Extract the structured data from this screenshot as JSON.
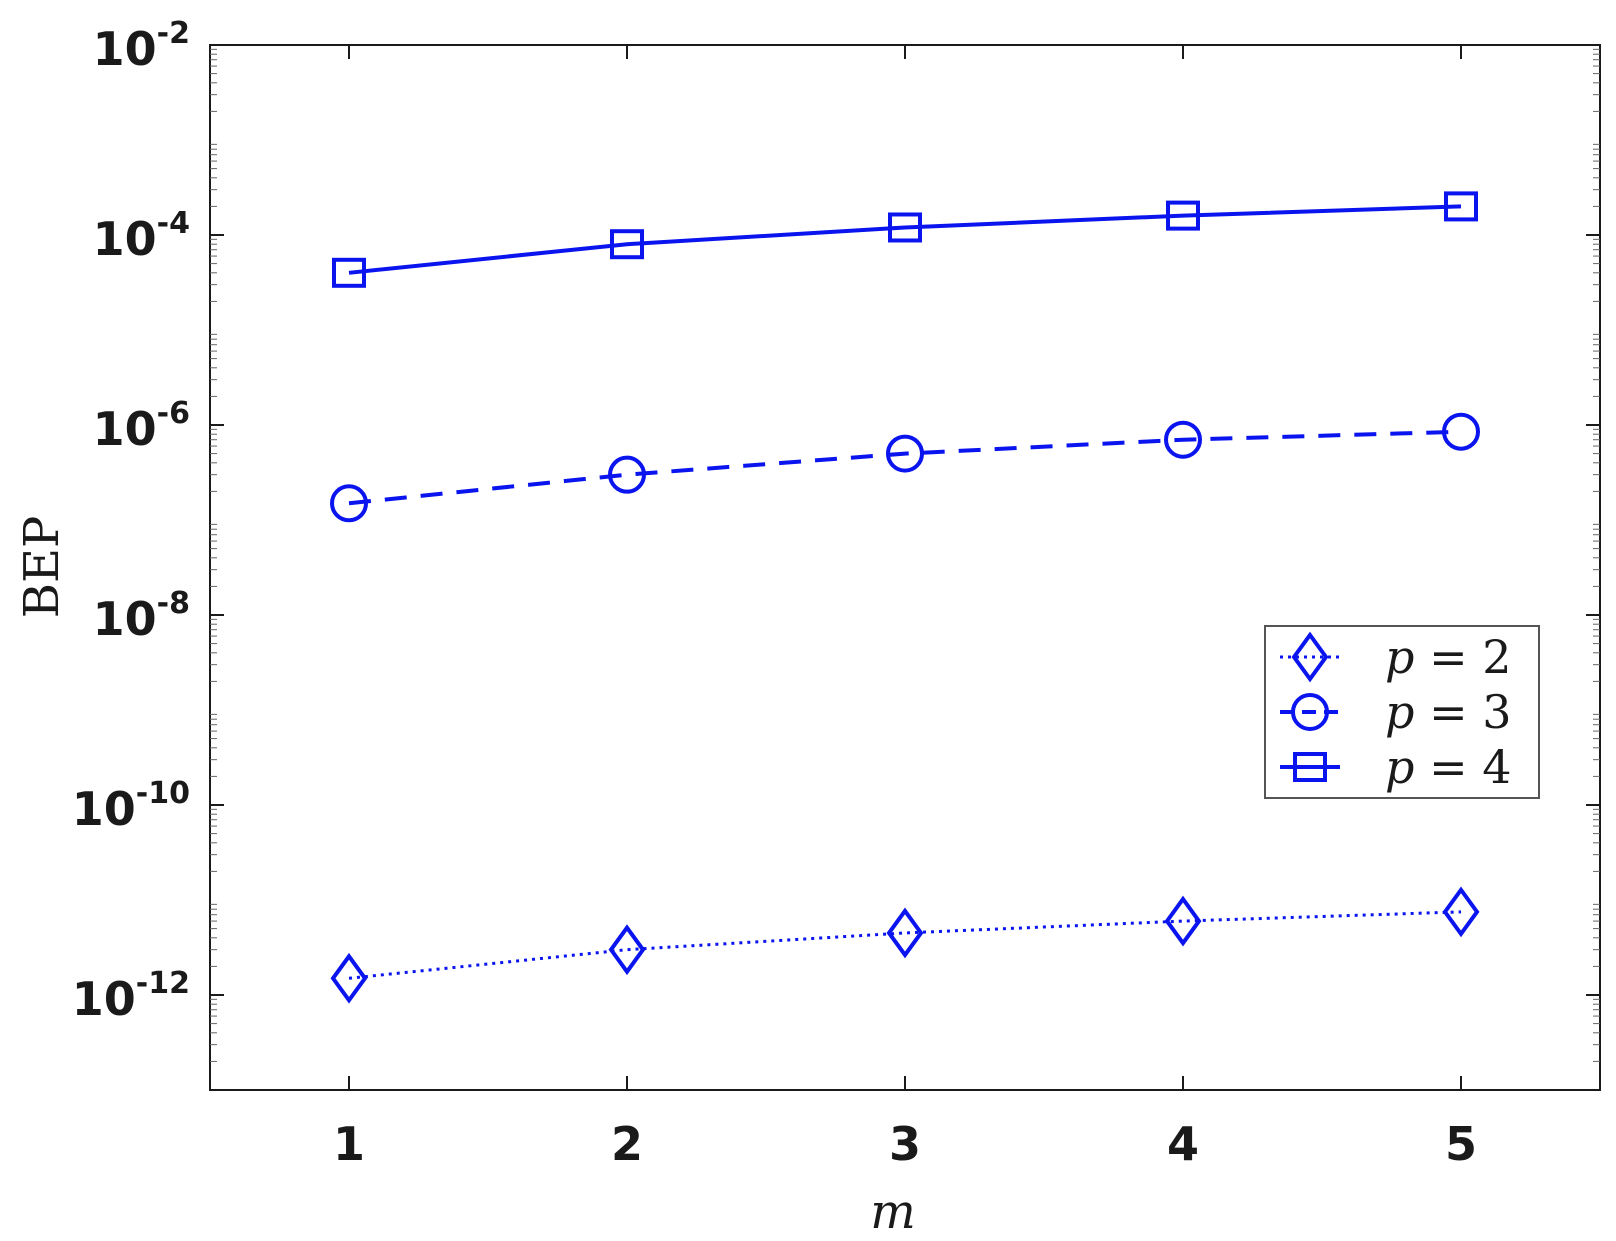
{
  "chart_data": {
    "type": "line",
    "title": "",
    "xlabel": "m",
    "ylabel": "BEP",
    "x": [
      1,
      2,
      3,
      4,
      5
    ],
    "xlim": [
      0.5,
      5.5
    ],
    "ylim": [
      1e-13,
      0.01
    ],
    "yscale": "log",
    "ytick_exponents": [
      "-2",
      "-4",
      "-6",
      "-8",
      "-10",
      "-12"
    ],
    "ytick_values": [
      0.01,
      0.0001,
      1e-06,
      1e-08,
      1e-10,
      1e-12
    ],
    "xtick_labels": [
      "1",
      "2",
      "3",
      "4",
      "5"
    ],
    "grid": false,
    "legend": "right-middle",
    "color": "#0a14ee",
    "series": [
      {
        "name": "p = 2",
        "var": "p",
        "eq": "= 2",
        "marker": "diamond",
        "linestyle": "dotted",
        "values": [
          1.5e-12,
          3e-12,
          4.5e-12,
          6e-12,
          7.5e-12
        ]
      },
      {
        "name": "p = 3",
        "var": "p",
        "eq": "= 3",
        "marker": "circle",
        "linestyle": "dashed",
        "values": [
          1.5e-07,
          3e-07,
          5e-07,
          7e-07,
          8.5e-07
        ]
      },
      {
        "name": "p = 4",
        "var": "p",
        "eq": "= 4",
        "marker": "square",
        "linestyle": "solid",
        "values": [
          4e-05,
          8e-05,
          0.00012,
          0.00016,
          0.0002
        ]
      }
    ]
  }
}
